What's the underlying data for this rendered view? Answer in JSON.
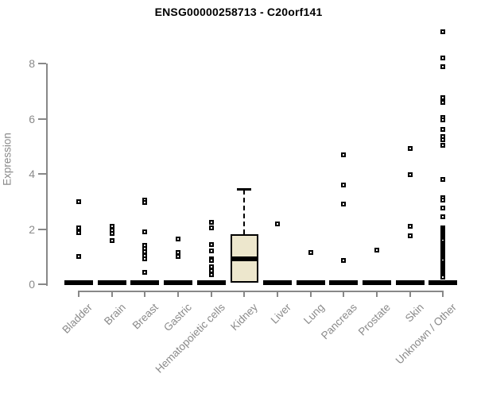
{
  "chart_data": {
    "type": "boxplot",
    "title": "ENSG00000258713 - C20orf141",
    "ylabel": "Expression",
    "xlabel": "",
    "ylim": [
      0,
      9.3
    ],
    "yticks": [
      "0",
      "2",
      "4",
      "6",
      "8"
    ],
    "grid": false,
    "legend": "none",
    "categories": [
      "Bladder",
      "Brain",
      "Breast",
      "Gastric",
      "Hematopoietic cells",
      "Kidney",
      "Liver",
      "Lung",
      "Pancreas",
      "Prostate",
      "Skin",
      "Unknown / Other"
    ],
    "boxes": [
      {
        "category": "Bladder",
        "q1": 0,
        "median": 0,
        "q3": 0,
        "whisker_low": 0,
        "whisker_high": 0,
        "outliers": [
          3.0,
          2.05,
          1.88,
          1.0
        ]
      },
      {
        "category": "Brain",
        "q1": 0,
        "median": 0,
        "q3": 0,
        "whisker_low": 0,
        "whisker_high": 0,
        "outliers": [
          2.1,
          1.95,
          1.83,
          1.58
        ]
      },
      {
        "category": "Breast",
        "q1": 0,
        "median": 0,
        "q3": 0,
        "whisker_low": 0,
        "whisker_high": 0,
        "outliers": [
          3.05,
          2.95,
          1.9,
          1.42,
          1.3,
          1.18,
          1.05,
          0.93,
          0.43
        ]
      },
      {
        "category": "Gastric",
        "q1": 0,
        "median": 0,
        "q3": 0,
        "whisker_low": 0,
        "whisker_high": 0,
        "outliers": [
          1.65,
          1.15,
          1.0
        ]
      },
      {
        "category": "Hematopoietic cells",
        "q1": 0,
        "median": 0,
        "q3": 0,
        "whisker_low": 0,
        "whisker_high": 0,
        "outliers": [
          2.25,
          2.05,
          1.45,
          1.2,
          0.92,
          0.86,
          0.62,
          0.48,
          0.35
        ]
      },
      {
        "category": "Kidney",
        "q1": 0.06,
        "median": 0.93,
        "q3": 1.8,
        "whisker_low": 0.06,
        "whisker_high": 3.42,
        "outliers": []
      },
      {
        "category": "Liver",
        "q1": 0,
        "median": 0,
        "q3": 0,
        "whisker_low": 0,
        "whisker_high": 0,
        "outliers": [
          2.2
        ]
      },
      {
        "category": "Lung",
        "q1": 0,
        "median": 0,
        "q3": 0,
        "whisker_low": 0,
        "whisker_high": 0,
        "outliers": [
          1.15
        ]
      },
      {
        "category": "Pancreas",
        "q1": 0,
        "median": 0,
        "q3": 0,
        "whisker_low": 0,
        "whisker_high": 0,
        "outliers": [
          4.68,
          3.6,
          2.9,
          0.85
        ]
      },
      {
        "category": "Prostate",
        "q1": 0,
        "median": 0,
        "q3": 0,
        "whisker_low": 0,
        "whisker_high": 0,
        "outliers": [
          1.25
        ]
      },
      {
        "category": "Skin",
        "q1": 0,
        "median": 0,
        "q3": 0,
        "whisker_low": 0,
        "whisker_high": 0,
        "outliers": [
          4.93,
          3.98,
          2.1,
          1.75
        ]
      },
      {
        "category": "Unknown / Other",
        "q1": 0,
        "median": 0,
        "q3": 0,
        "whisker_low": 0,
        "whisker_high": 0,
        "outliers": [
          9.15,
          8.2,
          7.88,
          6.75,
          6.6,
          6.05,
          5.95,
          5.6,
          5.35,
          5.25,
          5.05,
          3.8,
          3.15,
          3.05,
          2.76,
          2.44,
          2.05,
          1.99,
          1.93,
          1.87,
          1.81,
          1.75,
          1.69,
          1.63,
          1.57,
          1.51,
          1.45,
          1.39,
          1.33,
          1.27,
          1.21,
          1.15,
          1.09,
          1.03,
          0.97,
          0.91,
          0.85,
          0.79,
          0.73,
          0.67,
          0.61,
          0.55,
          0.49,
          0.43,
          0.37,
          0.31,
          0.25
        ]
      }
    ],
    "colors": {
      "box_fill": "#ede7cd",
      "box_border": "#000000",
      "median": "#000000",
      "outlier_stroke": "#000000",
      "axis": "#888888",
      "tick_text": "#8a8a8a",
      "title_text": "#000000"
    }
  }
}
